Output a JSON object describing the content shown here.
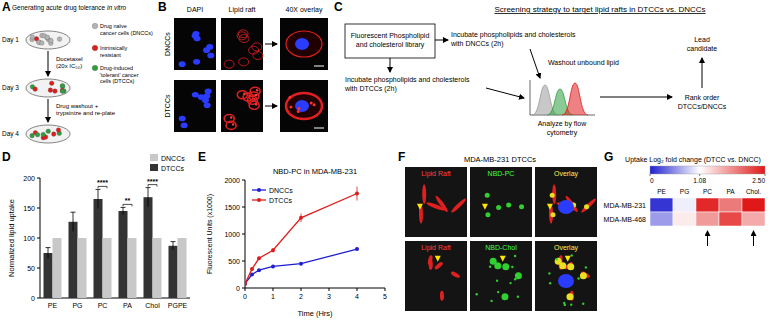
{
  "panel_labels": [
    "A",
    "B",
    "C",
    "D",
    "E",
    "F",
    "G"
  ],
  "panel_a": {
    "title": "Generating acute drug tolerance",
    "title_italic": "in vitro",
    "days": [
      "Day 1",
      "Day 3",
      "Day 4"
    ],
    "steps": [
      [
        "Docetaxel",
        "(20x IC₅₀)"
      ],
      [
        "Drug washout +",
        "trypsinize and re-plate"
      ]
    ],
    "legend": [
      {
        "label": [
          "Drug naïve",
          "cancer cells (DNCCs)"
        ],
        "color": "#b4b4b4"
      },
      {
        "label": [
          "Intrinsically",
          "resistant"
        ],
        "color": "#e01b1b"
      },
      {
        "label": [
          "Drug-induced",
          "'tolerant' cancer",
          "cells (DTCCs)"
        ],
        "color": "#2e9e3e"
      }
    ]
  },
  "panel_b": {
    "columns": [
      "DAPI",
      "Lipid raft",
      "40X overlay"
    ],
    "rows": [
      "DNCCs",
      "DTCCs"
    ]
  },
  "panel_c": {
    "title": "Screening strategy to target lipid rafts in DTCCs vs. DNCCs",
    "library": [
      "Fluorescent Phospholipid",
      "and cholesterol library"
    ],
    "incubate_dnccs": [
      "Incubate phospholipids and cholesterols",
      "with DNCCs (2h)"
    ],
    "incubate_dtccs": [
      "Incubate phospholipids and cholesterols",
      "with DTCCs (2h)"
    ],
    "washout": [
      "Washout unbound lipid"
    ],
    "analyze": [
      "Analyze by flow",
      "cytometry"
    ],
    "rank": [
      "Rank order",
      "DTCCs/DNCCs"
    ],
    "lead": [
      "Lead",
      "candidate"
    ]
  },
  "panel_f": {
    "title": "MDA-MB-231 DTCCs",
    "rows": [
      [
        "Lipid Raft",
        "NBD-PC",
        "Overlay"
      ],
      [
        "Lipid Raft",
        "NBD-Chol",
        "Overlay"
      ]
    ]
  },
  "chart_data": [
    {
      "type": "bar",
      "y_label": "Normalized lipid uptake",
      "categories": [
        "PE",
        "PG",
        "PC",
        "PA",
        "Chol",
        "PGPE"
      ],
      "series": [
        {
          "name": "DTCCs",
          "color": "#333333",
          "values": [
            75,
            127,
            165,
            145,
            168,
            87
          ],
          "errors": [
            9,
            16,
            16,
            6,
            16,
            7
          ]
        },
        {
          "name": "DNCCs",
          "color": "#c8c8c8",
          "values": [
            100,
            100,
            100,
            100,
            100,
            100
          ]
        }
      ],
      "ylim": [
        0,
        200
      ],
      "yticks": [
        0,
        50,
        100,
        150,
        200
      ],
      "legend": "upper right",
      "annotations": [
        {
          "category": "PC",
          "label": "****"
        },
        {
          "category": "PA",
          "label": "**"
        },
        {
          "category": "Chol",
          "label": "****"
        }
      ]
    },
    {
      "type": "line",
      "title": "NBD-PC in MDA-MB-231",
      "x_label": "Time (Hrs)",
      "y_label": "Fluorescent Units (x1000)",
      "x": [
        0,
        0.25,
        0.5,
        1,
        2,
        4
      ],
      "series": [
        {
          "name": "DNCCs",
          "color": "#1f1fd0",
          "marker": "circle",
          "values": [
            80,
            250,
            330,
            400,
            450,
            720
          ]
        },
        {
          "name": "DTCCs",
          "color": "#e01b1b",
          "marker": "circle",
          "values": [
            80,
            350,
            550,
            700,
            1300,
            1750
          ],
          "errors": [
            0,
            20,
            30,
            40,
            80,
            130
          ]
        }
      ],
      "xlim": [
        0,
        5
      ],
      "xticks": [
        0,
        1,
        2,
        3,
        4,
        5
      ],
      "ylim": [
        0,
        2000
      ],
      "yticks": [
        0,
        500,
        1000,
        1500,
        2000
      ],
      "legend": "upper left"
    },
    {
      "type": "heatmap",
      "title": "Uptake Log₂ fold change (DTCC vs. DNCC)",
      "x_categories": [
        "PE",
        "PG",
        "PC",
        "PA",
        "Chol."
      ],
      "y_categories": [
        "MDA-MB-231",
        "MDA-MB-468"
      ],
      "cells": [
        [
          0.1,
          1.0,
          2.4,
          1.9,
          2.5
        ],
        [
          0.6,
          1.2,
          1.7,
          2.2,
          1.6
        ]
      ],
      "color_range": [
        0,
        2.5
      ],
      "color_ticks": [
        0,
        1.08,
        {
          "value": 2.5,
          "label": "2.50"
        }
      ],
      "highlighted": [
        "PC",
        "Chol."
      ]
    }
  ]
}
